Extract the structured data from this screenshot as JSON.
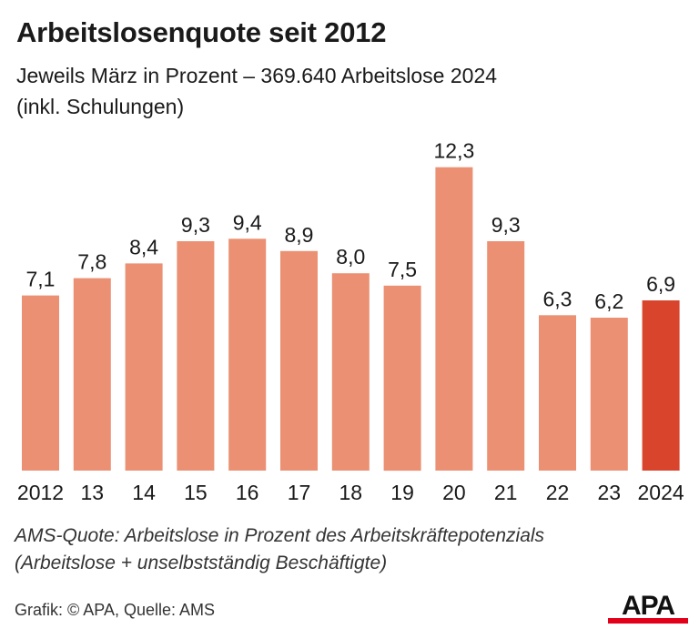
{
  "title": "Arbeitslosenquote seit 2012",
  "subtitle_line1": "Jeweils März in Prozent – 369.640 Arbeitslose 2024",
  "subtitle_line2": "(inkl. Schulungen)",
  "footnote_line1": "AMS-Quote: Arbeitslose in Prozent des Arbeitskräftepotenzials",
  "footnote_line2": "(Arbeitslose + unselbstständig Beschäftigte)",
  "source": "Grafik: © APA, Quelle: AMS",
  "logo_text": "APA",
  "colors": {
    "bar": "#eb9072",
    "highlight": "#d9442d",
    "logo_red": "#e2001a"
  },
  "chart_data": {
    "type": "bar",
    "title": "Arbeitslosenquote seit 2012",
    "xlabel": "",
    "ylabel": "",
    "ylim": [
      0,
      13
    ],
    "grid": false,
    "categories": [
      "2012",
      "13",
      "14",
      "15",
      "16",
      "17",
      "18",
      "19",
      "20",
      "21",
      "22",
      "23",
      "2024"
    ],
    "values": [
      7.1,
      7.8,
      8.4,
      9.3,
      9.4,
      8.9,
      8.0,
      7.5,
      12.3,
      9.3,
      6.3,
      6.2,
      6.9
    ],
    "value_labels": [
      "7,1",
      "7,8",
      "8,4",
      "9,3",
      "9,4",
      "8,9",
      "8,0",
      "7,5",
      "12,3",
      "9,3",
      "6,3",
      "6,2",
      "6,9"
    ],
    "highlight_index": 12
  }
}
